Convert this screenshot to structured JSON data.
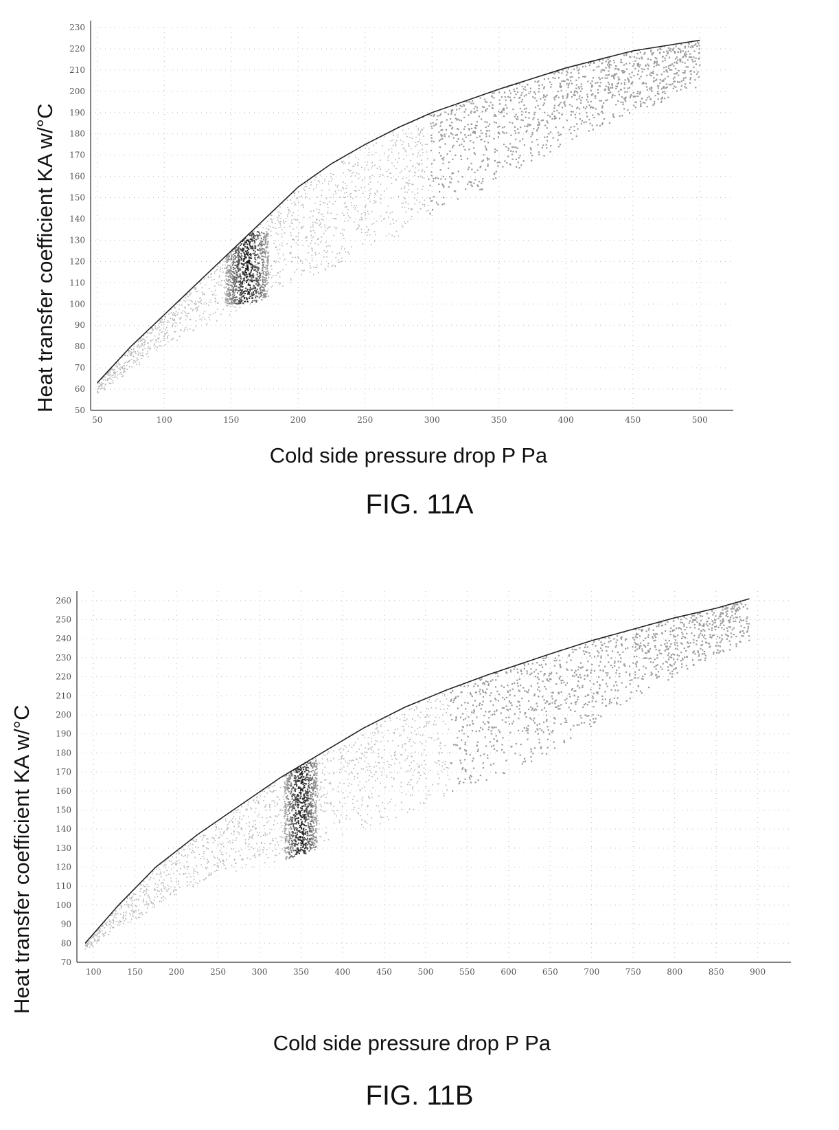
{
  "chart_data": [
    {
      "type": "scatter",
      "caption": "FIG. 11A",
      "xlabel": "Cold side pressure drop P Pa",
      "ylabel": "Heat transfer coefficient KA w/°C",
      "xlim": [
        45,
        525
      ],
      "ylim": [
        50,
        230
      ],
      "xticks": [
        50,
        100,
        150,
        200,
        250,
        300,
        350,
        400,
        450,
        500
      ],
      "yticks": [
        50,
        60,
        70,
        80,
        90,
        100,
        110,
        120,
        130,
        140,
        150,
        160,
        170,
        180,
        190,
        200,
        210,
        220,
        230
      ],
      "xtick_labels": [
        "50",
        "100",
        "150",
        "200",
        "250",
        "300",
        "350",
        "400",
        "450",
        "500"
      ],
      "ytick_labels": [
        "50",
        "60",
        "70",
        "80",
        "90",
        "100",
        "110",
        "120",
        "130",
        "140",
        "150",
        "160",
        "170",
        "180",
        "190",
        "200",
        "210",
        "220",
        "230"
      ],
      "grid": "dotted",
      "series": [
        {
          "kind": "pareto-front-line",
          "x": [
            50,
            75,
            100,
            125,
            150,
            175,
            200,
            225,
            250,
            275,
            300,
            350,
            400,
            450,
            500
          ],
          "y": [
            63,
            80,
            95,
            110,
            125,
            140,
            155,
            166,
            175,
            183,
            190,
            201,
            211,
            219,
            224
          ]
        },
        {
          "kind": "lower-envelope",
          "x": [
            50,
            100,
            150,
            200,
            250,
            300,
            350,
            400,
            450,
            500
          ],
          "y": [
            57,
            80,
            95,
            110,
            123,
            141,
            158,
            175,
            190,
            200
          ]
        },
        {
          "kind": "highlighted-band",
          "x_range": [
            158,
            166
          ],
          "y_range": [
            100,
            134
          ]
        }
      ]
    },
    {
      "type": "scatter",
      "caption": "FIG. 11B",
      "xlabel": "Cold side pressure drop P Pa",
      "ylabel": "Heat transfer coefficient KA w/°C",
      "xlim": [
        80,
        940
      ],
      "ylim": [
        70,
        265
      ],
      "xticks": [
        100,
        150,
        200,
        250,
        300,
        350,
        400,
        450,
        500,
        550,
        600,
        650,
        700,
        750,
        800,
        850,
        900
      ],
      "yticks": [
        70,
        80,
        90,
        100,
        110,
        120,
        130,
        140,
        150,
        160,
        170,
        180,
        190,
        200,
        210,
        220,
        230,
        240,
        250,
        260
      ],
      "xtick_labels": [
        "100",
        "150",
        "200",
        "250",
        "300",
        "350",
        "400",
        "450",
        "500",
        "550",
        "600",
        "650",
        "700",
        "750",
        "800",
        "850",
        "900"
      ],
      "ytick_labels": [
        "70",
        "80",
        "90",
        "100",
        "110",
        "120",
        "130",
        "140",
        "150",
        "160",
        "170",
        "180",
        "190",
        "200",
        "210",
        "220",
        "230",
        "240",
        "250",
        "260"
      ],
      "grid": "dotted",
      "series": [
        {
          "kind": "pareto-front-line",
          "x": [
            90,
            130,
            175,
            225,
            275,
            325,
            375,
            425,
            475,
            525,
            575,
            650,
            700,
            750,
            800,
            850,
            890
          ],
          "y": [
            80,
            100,
            120,
            137,
            152,
            167,
            180,
            193,
            204,
            213,
            221,
            232,
            239,
            245,
            251,
            256,
            261
          ]
        },
        {
          "kind": "lower-envelope",
          "x": [
            90,
            150,
            200,
            250,
            300,
            350,
            400,
            450,
            500,
            550,
            600,
            650,
            700,
            750,
            800,
            850,
            900
          ],
          "y": [
            76,
            92,
            105,
            115,
            121,
            126,
            135,
            143,
            152,
            161,
            170,
            180,
            193,
            208,
            220,
            231,
            240
          ]
        },
        {
          "kind": "highlighted-band",
          "x_range": [
            345,
            355
          ],
          "y_range": [
            124,
            176
          ]
        }
      ]
    }
  ]
}
